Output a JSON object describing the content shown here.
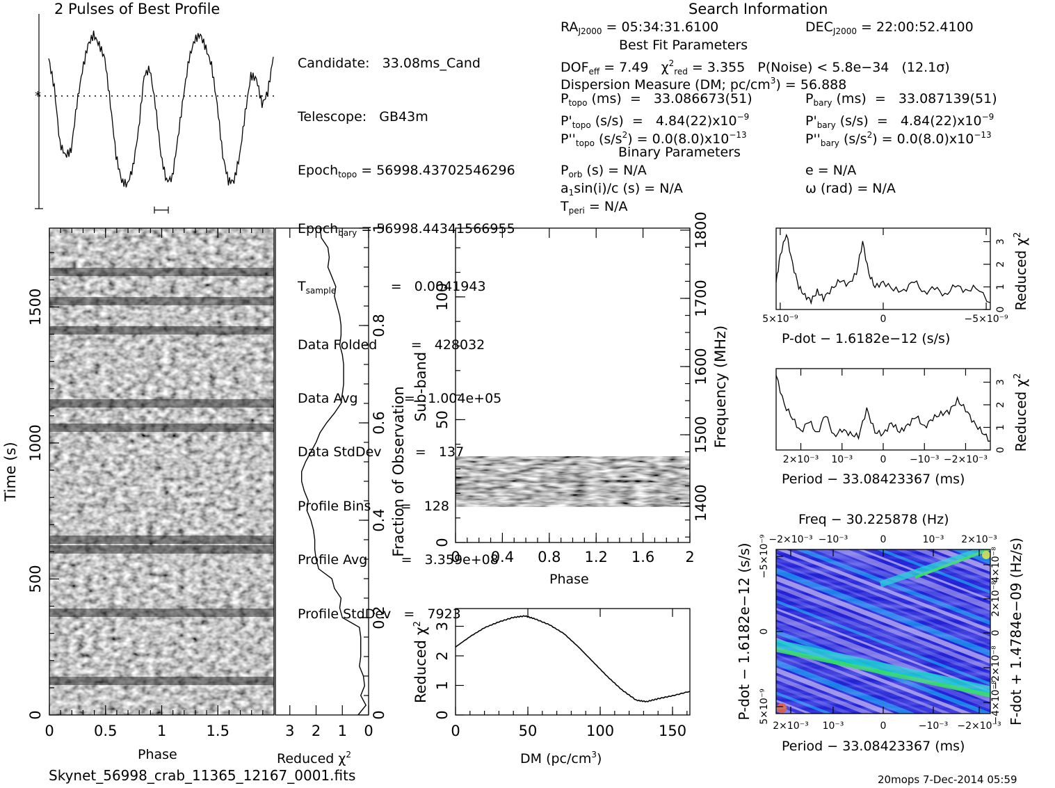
{
  "window": {
    "profile_title": "2 Pulses of Best Profile",
    "search_title": "Search Information",
    "best_fit_title": "Best Fit Parameters",
    "binary_title": "Binary Parameters",
    "filename": "Skynet_56998_crab_11365_12167_0001.fits",
    "footer": "20mops   7-Dec-2014 05:59"
  },
  "info": {
    "candidate": "Candidate:   33.08ms_Cand",
    "telescope": "Telescope:   GB43m",
    "epoch_topo_label": "Epoch",
    "epoch_topo_sub": "topo",
    "epoch_topo_val": " = 56998.43702546296",
    "epoch_bary_label": "Epoch",
    "epoch_bary_sub": "bary",
    "epoch_bary_val": " = 56998.44341566955",
    "tsample_label": "T",
    "tsample_sub": "sample",
    "tsample_val": "             =   0.0041943",
    "data_folded": "Data Folded        =   428032",
    "data_avg": "Data Avg           =   1.004e+05",
    "data_stddev": "Data StdDev        =   137",
    "profile_bins": "Profile Bins       =   128",
    "profile_avg": "Profile Avg        =   3.359e+08",
    "profile_stddev": "Profile StdDev   =   7923",
    "ra_label": "RA",
    "ra_sub": "J2000",
    "ra_val": " = 05:34:31.6100",
    "dec_label": "DEC",
    "dec_sub": "J2000",
    "dec_val": " = 22:00:52.4100",
    "dof_label": "DOF",
    "dof_sub": "eff",
    "dof_val": " = 7.49   χ",
    "chi_sup": "2",
    "chi_sub": "red",
    "chi_val": " = 3.355   P(Noise) < 5.8e−34   (12.1σ)",
    "dm_label": "Dispersion Measure (DM; pc/cm",
    "dm_sup": "3",
    "dm_val": ") = 56.888",
    "ptopo_label": "P",
    "ptopo_sub": "topo",
    "ptopo_val": " (ms)  =   33.086673(51)",
    "pbary_label": "P",
    "pbary_sub": "bary",
    "pbary_val": " (ms)  =   33.087139(51)",
    "pdtopo_label": "P'",
    "pdtopo_sub": "topo",
    "pdtopo_val": " (s/s)  =   4.84(22)x10",
    "pdtopo_exp": "−9",
    "pdbary_label": "P'",
    "pdbary_sub": "bary",
    "pdbary_val": " (s/s)  =   4.84(22)x10",
    "pdbary_exp": "−9",
    "pddtopo_label": "P''",
    "pddtopo_sub": "topo",
    "pddtopo_val": " (s/s",
    "pddtopo_sup": "2",
    "pddtopo_val2": ") = 0.0(8.0)x10",
    "pddtopo_exp": "−13",
    "pddbary_label": "P''",
    "pddbary_sub": "bary",
    "pddbary_val": " (s/s",
    "pddbary_sup": "2",
    "pddbary_val2": ") = 0.0(8.0)x10",
    "pddbary_exp": "−13",
    "porb_label": "P",
    "porb_sub": "orb",
    "porb_val": " (s) = N/A",
    "asini_label": "a",
    "asini_sub": "1",
    "asini_val": "sin(i)/c (s) = N/A",
    "tperi_label": "T",
    "tperi_sub": "peri",
    "tperi_val": " = N/A",
    "ecc": "e = N/A",
    "omega": "ω (rad) = N/A"
  },
  "colors": {
    "ink": "#000000",
    "background": "#ffffff"
  },
  "chart_data": [
    {
      "type": "line",
      "title": "2 Pulses of Best Profile",
      "x": [
        0.0,
        0.05,
        0.1,
        0.15,
        0.2,
        0.25,
        0.3,
        0.35,
        0.4,
        0.45,
        0.5,
        0.55,
        0.6,
        0.65,
        0.7,
        0.75,
        0.8,
        0.85,
        0.9,
        0.95,
        1.0,
        1.05,
        1.1,
        1.15,
        1.2,
        1.25,
        1.3,
        1.35,
        1.4,
        1.45,
        1.5,
        1.55,
        1.6,
        1.65,
        1.7,
        1.75,
        1.8,
        1.85,
        1.9,
        1.95,
        2.0
      ],
      "values": [
        0.82,
        0.65,
        0.32,
        0.25,
        0.28,
        0.55,
        0.75,
        0.9,
        0.96,
        0.9,
        0.82,
        0.55,
        0.25,
        0.1,
        0.08,
        0.18,
        0.4,
        0.72,
        0.76,
        0.55,
        0.25,
        0.1,
        0.12,
        0.35,
        0.6,
        0.82,
        0.93,
        0.96,
        0.88,
        0.78,
        0.55,
        0.25,
        0.1,
        0.1,
        0.25,
        0.5,
        0.72,
        0.7,
        0.55,
        0.62,
        0.83
      ],
      "mean_level": 0.6,
      "ylim": [
        0,
        1
      ]
    },
    {
      "type": "heatmap",
      "xlabel": "Phase",
      "ylabel": "Time (s)",
      "xlim": [
        0,
        2
      ],
      "ylim": [
        0,
        1790
      ],
      "x_ticks": [
        "0",
        "0.5",
        "1",
        "1.5"
      ],
      "x_tick_values": [
        0,
        0.5,
        1,
        1.5
      ],
      "y_ticks": [
        "0",
        "500",
        "1000",
        "1500"
      ],
      "y_tick_values": [
        0,
        500,
        1000,
        1500
      ],
      "right_ticks": [
        "0",
        "0.2",
        "0.4",
        "0.6",
        "0.8",
        "1"
      ],
      "right_tick_values": [
        0,
        0.2,
        0.4,
        0.6,
        0.8,
        1
      ],
      "right_label": "Fraction of Observation",
      "dark_fractions": [
        0.07,
        0.21,
        0.34,
        0.36,
        0.59,
        0.64,
        0.79,
        0.85,
        0.91
      ],
      "rows": 64,
      "cols": 64
    },
    {
      "type": "line",
      "xlabel": "Reduced χ",
      "xlabel_sup": "2",
      "x_ticks": [
        "3",
        "2",
        "1",
        "0"
      ],
      "x_tick_values": [
        3,
        2,
        1,
        0
      ],
      "xlim": [
        3.55,
        0
      ],
      "fraction": [
        0,
        0.02,
        0.04,
        0.06,
        0.08,
        0.1,
        0.12,
        0.14,
        0.16,
        0.18,
        0.2,
        0.22,
        0.24,
        0.26,
        0.28,
        0.3,
        0.32,
        0.34,
        0.36,
        0.38,
        0.4,
        0.42,
        0.44,
        0.46,
        0.48,
        0.5,
        0.52,
        0.54,
        0.56,
        0.58,
        0.6,
        0.62,
        0.64,
        0.66,
        0.68,
        0.7,
        0.72,
        0.74,
        0.76,
        0.78,
        0.8,
        0.82,
        0.84,
        0.86,
        0.88,
        0.9,
        0.92,
        0.94,
        0.96,
        0.98,
        1.0
      ],
      "values": [
        0.4,
        0.1,
        0.3,
        0.15,
        0.2,
        0.35,
        0.3,
        0.3,
        0.3,
        0.35,
        1.0,
        1.1,
        1.05,
        1.3,
        1.4,
        1.9,
        2.0,
        2.05,
        2.05,
        2.1,
        2.2,
        2.35,
        2.3,
        2.45,
        2.55,
        2.55,
        2.4,
        2.2,
        2.0,
        1.85,
        1.6,
        1.3,
        1.05,
        1.0,
        0.95,
        0.95,
        0.95,
        1.0,
        1.1,
        1.05,
        1.05,
        1.1,
        1.2,
        1.3,
        1.25,
        1.4,
        1.55,
        1.5,
        1.55,
        1.8,
        1.85
      ]
    },
    {
      "type": "heatmap",
      "xlabel": "Phase",
      "ylabel": "Sub-band",
      "right_label": "Frequency (MHz)",
      "xlim": [
        0,
        2
      ],
      "ylim": [
        0,
        128
      ],
      "x_ticks": [
        "0",
        "0.4",
        "0.8",
        "1.2",
        "1.6",
        "2"
      ],
      "x_tick_values": [
        0,
        0.4,
        0.8,
        1.2,
        1.6,
        2
      ],
      "y_ticks": [
        "0",
        "50",
        "100"
      ],
      "y_tick_values": [
        0,
        50,
        100
      ],
      "right_ticks": [
        "1400",
        "1500",
        "1600",
        "1700",
        "1800"
      ],
      "right_tick_values": [
        1400,
        1500,
        1600,
        1700,
        1800
      ],
      "freq_lim": [
        1342,
        1803
      ],
      "band_subbands": [
        14.5,
        35
      ]
    },
    {
      "type": "line",
      "xlabel": "DM (pc/cm",
      "xlabel_sup": "3",
      "xlabel_end": ")",
      "ylabel": "Reduced χ",
      "ylabel_sup": "2",
      "xlim": [
        0,
        162
      ],
      "ylim": [
        0,
        3.6
      ],
      "x_ticks": [
        "0",
        "50",
        "100",
        "150"
      ],
      "x_tick_values": [
        0,
        50,
        100,
        150
      ],
      "y_ticks": [
        "0",
        "1",
        "2",
        "3"
      ],
      "y_tick_values": [
        0,
        1,
        2,
        3
      ],
      "x": [
        0,
        10,
        20,
        30,
        40,
        48,
        55,
        65,
        75,
        85,
        95,
        105,
        115,
        125,
        132,
        140,
        150,
        162
      ],
      "values": [
        2.3,
        2.65,
        2.95,
        3.15,
        3.3,
        3.35,
        3.25,
        3.05,
        2.75,
        2.3,
        1.8,
        1.3,
        0.85,
        0.5,
        0.45,
        0.55,
        0.65,
        0.8
      ]
    },
    {
      "type": "line",
      "xlabel": "P-dot − 1.6182e−12 (s/s)",
      "ylabel": "Reduced χ",
      "ylabel_sup": "2",
      "xlim": [
        5.2e-09,
        -5.2e-09
      ],
      "ylim": [
        0,
        3.6
      ],
      "x_ticks": [
        "5×10⁻⁹",
        "0",
        "−5×10⁻⁹"
      ],
      "x_tick_values": [
        5e-09,
        0,
        -5e-09
      ],
      "y_ticks": [
        "0",
        "1",
        "2",
        "3"
      ],
      "y_tick_values": [
        0,
        1,
        2,
        3
      ],
      "x": [
        5.2e-09,
        5e-09,
        4.7e-09,
        4.4e-09,
        4.1e-09,
        3.8e-09,
        3.5e-09,
        3.2e-09,
        2.9e-09,
        2.5e-09,
        2.1e-09,
        1.7e-09,
        1.3e-09,
        1e-09,
        7e-10,
        4e-10,
        0.0,
        -5e-10,
        -1e-09,
        -1.5e-09,
        -2e-09,
        -2.5e-09,
        -3e-09,
        -3.5e-09,
        -4e-09,
        -4.5e-09,
        -5.2e-09
      ],
      "values": [
        1.2,
        2.4,
        3.35,
        2.0,
        1.0,
        0.6,
        0.4,
        0.8,
        0.5,
        0.9,
        1.3,
        1.1,
        1.6,
        3.0,
        1.6,
        1.0,
        1.2,
        0.9,
        0.8,
        1.3,
        0.7,
        1.0,
        0.6,
        1.1,
        0.8,
        1.0,
        0.3
      ]
    },
    {
      "type": "line",
      "xlabel": "Period − 33.08423367 (ms)",
      "ylabel": "Reduced χ",
      "ylabel_sup": "2",
      "xlim": [
        0.0026,
        -0.0026
      ],
      "ylim": [
        0,
        3.6
      ],
      "x_ticks": [
        "2×10⁻³",
        "10⁻³",
        "0",
        "−10⁻³",
        "−2×10⁻³"
      ],
      "x_tick_values": [
        0.002,
        0.001,
        0,
        -0.001,
        -0.002
      ],
      "y_ticks": [
        "0",
        "1",
        "2",
        "3"
      ],
      "y_tick_values": [
        0,
        1,
        2,
        3
      ],
      "x": [
        0.0026,
        0.0024,
        0.0022,
        0.002,
        0.0018,
        0.0016,
        0.0014,
        0.0012,
        0.001,
        0.0008,
        0.0006,
        0.0004,
        0.0002,
        0.0,
        -0.0002,
        -0.0004,
        -0.0006,
        -0.0008,
        -0.001,
        -0.0012,
        -0.0014,
        -0.0016,
        -0.0018,
        -0.002,
        -0.0022,
        -0.0024,
        -0.0026
      ],
      "values": [
        3.3,
        2.0,
        1.4,
        0.8,
        1.3,
        0.7,
        1.6,
        0.6,
        0.9,
        0.7,
        0.6,
        1.8,
        0.8,
        0.7,
        1.2,
        0.8,
        1.1,
        1.5,
        1.0,
        1.4,
        1.6,
        1.7,
        2.2,
        1.8,
        1.2,
        0.8,
        0.4
      ]
    },
    {
      "type": "heatmap",
      "title": "Freq − 30.225878 (Hz)",
      "xlabel": "Period − 33.08423367 (ms)",
      "ylabel": "P-dot − 1.6182e−12 (s/s)",
      "right_label": "F-dot + 1.4784e−09 (Hz/s)",
      "x_ticks": [
        "2×10⁻³",
        "10⁻³",
        "0",
        "−10⁻³",
        "−2×10⁻³"
      ],
      "top_ticks": [
        "−2×10⁻³",
        "−10⁻³",
        "0",
        "10⁻³",
        "2×10⁻³"
      ],
      "left_ticks": [
        "−5×10⁻⁹",
        "0",
        "5×10⁻⁹"
      ],
      "right_ticks": [
        "4×10⁻⁸",
        "2×10⁻⁸",
        "0",
        "−2×10⁻⁸",
        "−4×10⁻⁸"
      ],
      "colors": [
        "#2323d6",
        "#5a5ae6",
        "#9a8fe8",
        "#c6b8f0",
        "#1aa0f0",
        "#14d2d2",
        "#30e060",
        "#c8e040",
        "#e05020"
      ]
    }
  ]
}
